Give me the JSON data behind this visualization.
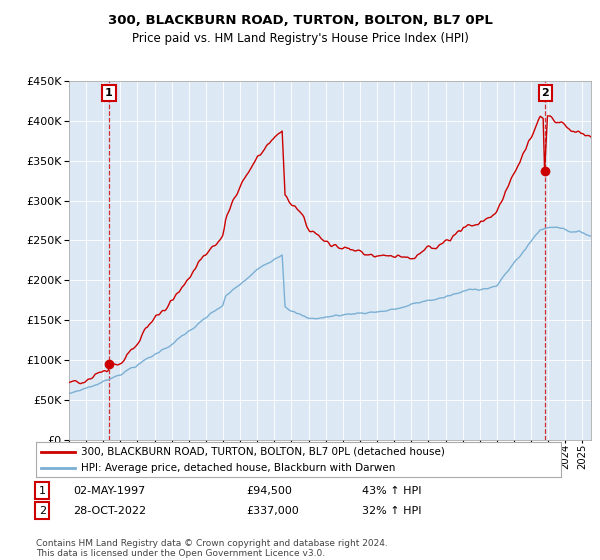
{
  "title": "300, BLACKBURN ROAD, TURTON, BOLTON, BL7 0PL",
  "subtitle": "Price paid vs. HM Land Registry's House Price Index (HPI)",
  "legend_line1": "300, BLACKBURN ROAD, TURTON, BOLTON, BL7 0PL (detached house)",
  "legend_line2": "HPI: Average price, detached house, Blackburn with Darwen",
  "point1_date": "02-MAY-1997",
  "point1_price": "£94,500",
  "point1_hpi": "43% ↑ HPI",
  "point1_year": 1997.33,
  "point1_value": 94500,
  "point2_date": "28-OCT-2022",
  "point2_price": "£337,000",
  "point2_hpi": "32% ↑ HPI",
  "point2_year": 2022.83,
  "point2_value": 337000,
  "footer": "Contains HM Land Registry data © Crown copyright and database right 2024.\nThis data is licensed under the Open Government Licence v3.0.",
  "line1_color": "#cc0000",
  "line2_color": "#7bafd4",
  "plot_bg_color": "#dce9f5",
  "background_color": "#ffffff",
  "grid_color": "#ffffff",
  "ylim": [
    0,
    450000
  ],
  "xlim_start": 1995.0,
  "xlim_end": 2025.5
}
